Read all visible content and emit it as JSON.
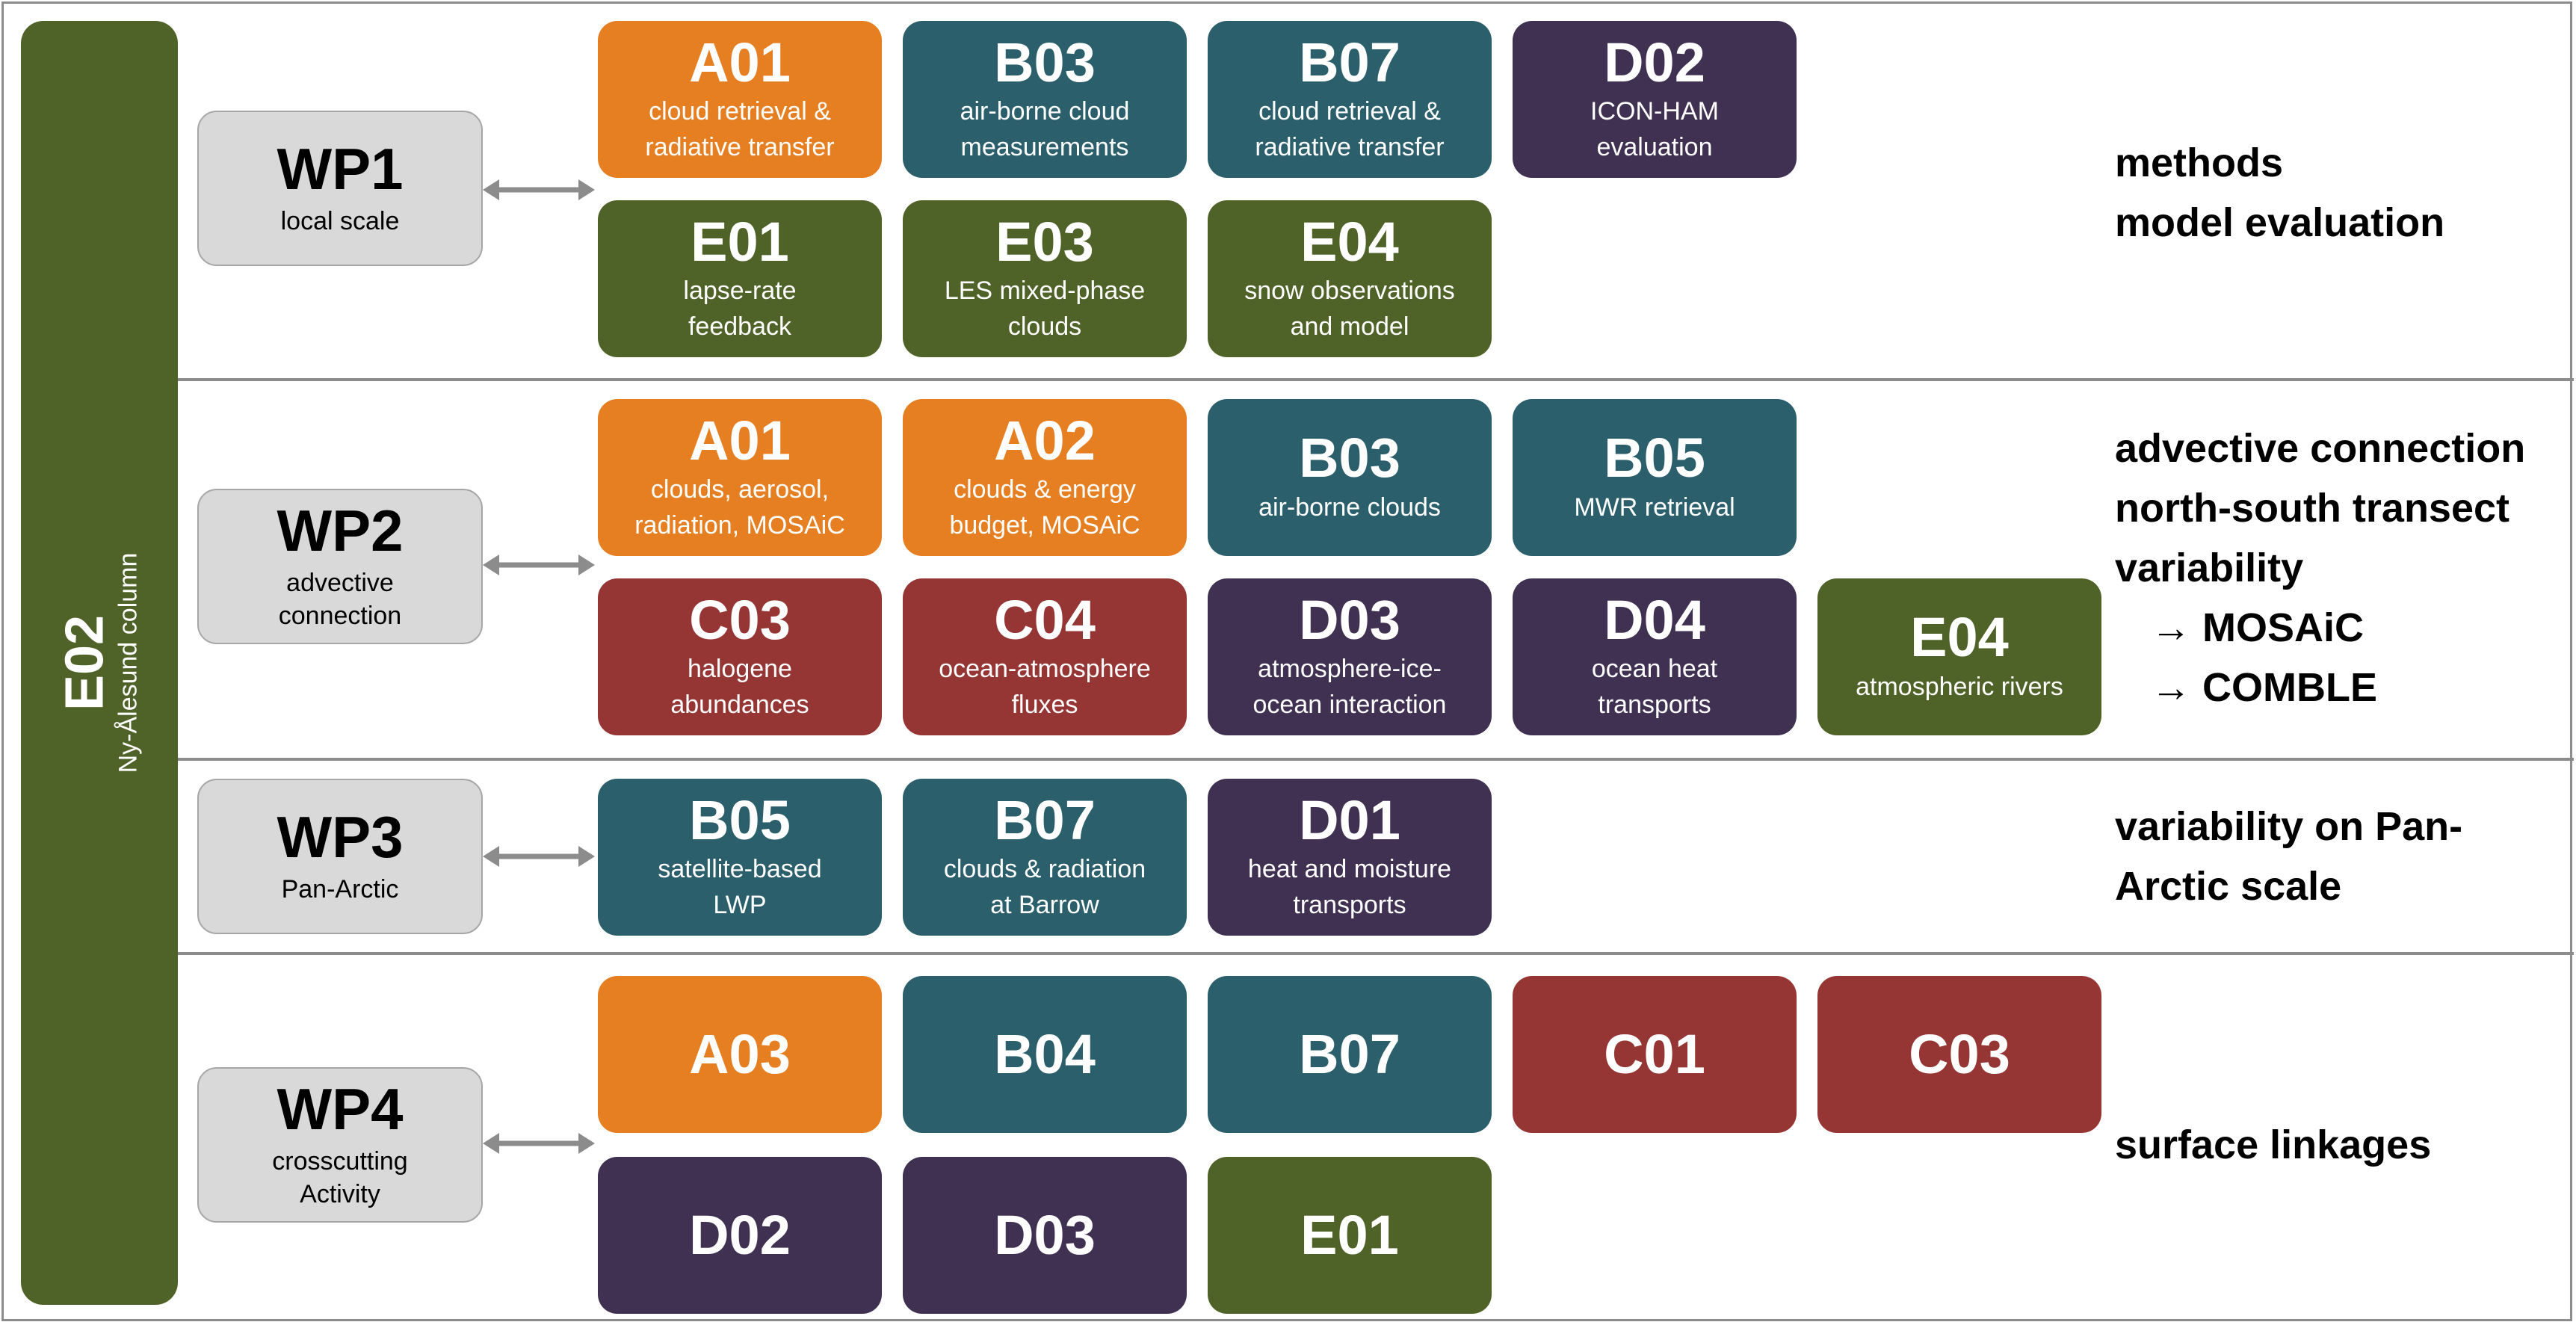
{
  "colors": {
    "orange": "#e67e22",
    "teal": "#2a5f6b",
    "purple": "#403152",
    "green": "#4f6228",
    "red": "#963634",
    "wp_box": "#d9d9d9",
    "border": "#8c8c8c"
  },
  "side": {
    "code": "E02",
    "label": "Ny-Ålesund column"
  },
  "workpackages": [
    {
      "id": "WP1",
      "subtitle": "local scale",
      "cards": [
        {
          "code": "A01",
          "desc": [
            "cloud retrieval &",
            "radiative transfer"
          ],
          "color": "#e67e22"
        },
        {
          "code": "B03",
          "desc": [
            "air-borne cloud",
            "measurements"
          ],
          "color": "#2a5f6b"
        },
        {
          "code": "B07",
          "desc": [
            "cloud retrieval &",
            "radiative transfer"
          ],
          "color": "#2a5f6b"
        },
        {
          "code": "D02",
          "desc": [
            "ICON-HAM",
            "evaluation"
          ],
          "color": "#403152"
        },
        {
          "code": "E01",
          "desc": [
            "lapse-rate",
            "feedback"
          ],
          "color": "#4f6228"
        },
        {
          "code": "E03",
          "desc": [
            "LES mixed-phase",
            "clouds"
          ],
          "color": "#4f6228"
        },
        {
          "code": "E04",
          "desc": [
            "snow observations",
            "and model"
          ],
          "color": "#4f6228"
        }
      ],
      "note": [
        "methods",
        "model evaluation"
      ]
    },
    {
      "id": "WP2",
      "subtitle": "advective connection",
      "cards": [
        {
          "code": "A01",
          "desc": [
            "clouds, aerosol,",
            "radiation, MOSAiC"
          ],
          "color": "#e67e22"
        },
        {
          "code": "A02",
          "desc": [
            "clouds & energy",
            "budget, MOSAiC"
          ],
          "color": "#e67e22"
        },
        {
          "code": "B03",
          "desc": [
            "air-borne clouds"
          ],
          "color": "#2a5f6b"
        },
        {
          "code": "B05",
          "desc": [
            "MWR retrieval"
          ],
          "color": "#2a5f6b"
        },
        {
          "code": "C03",
          "desc": [
            "halogene",
            "abundances"
          ],
          "color": "#963634"
        },
        {
          "code": "C04",
          "desc": [
            "ocean-atmosphere",
            "fluxes"
          ],
          "color": "#963634"
        },
        {
          "code": "D03",
          "desc": [
            "atmosphere-ice-",
            "ocean interaction"
          ],
          "color": "#403152"
        },
        {
          "code": "D04",
          "desc": [
            "ocean heat",
            "transports"
          ],
          "color": "#403152"
        },
        {
          "code": "E04",
          "desc": [
            "atmospheric rivers"
          ],
          "color": "#4f6228"
        }
      ],
      "note": [
        "advective connection",
        "north-south transect",
        "variability",
        "→ MOSAiC",
        "→ COMBLE"
      ]
    },
    {
      "id": "WP3",
      "subtitle": "Pan-Arctic",
      "cards": [
        {
          "code": "B05",
          "desc": [
            "satellite-based",
            "LWP"
          ],
          "color": "#2a5f6b"
        },
        {
          "code": "B07",
          "desc": [
            "clouds & radiation",
            "at Barrow"
          ],
          "color": "#2a5f6b"
        },
        {
          "code": "D01",
          "desc": [
            "heat and moisture",
            "transports"
          ],
          "color": "#403152"
        }
      ],
      "note": [
        "variability on Pan-",
        "Arctic scale"
      ]
    },
    {
      "id": "WP4",
      "subtitle": "crosscutting Activity",
      "cards": [
        {
          "code": "A03",
          "desc": [],
          "color": "#e67e22"
        },
        {
          "code": "B04",
          "desc": [],
          "color": "#2a5f6b"
        },
        {
          "code": "B07",
          "desc": [],
          "color": "#2a5f6b"
        },
        {
          "code": "C01",
          "desc": [],
          "color": "#963634"
        },
        {
          "code": "C03",
          "desc": [],
          "color": "#963634"
        },
        {
          "code": "D02",
          "desc": [],
          "color": "#403152"
        },
        {
          "code": "D03",
          "desc": [],
          "color": "#403152"
        },
        {
          "code": "E01",
          "desc": [],
          "color": "#4f6228"
        }
      ],
      "note": [
        "surface linkages"
      ]
    }
  ]
}
